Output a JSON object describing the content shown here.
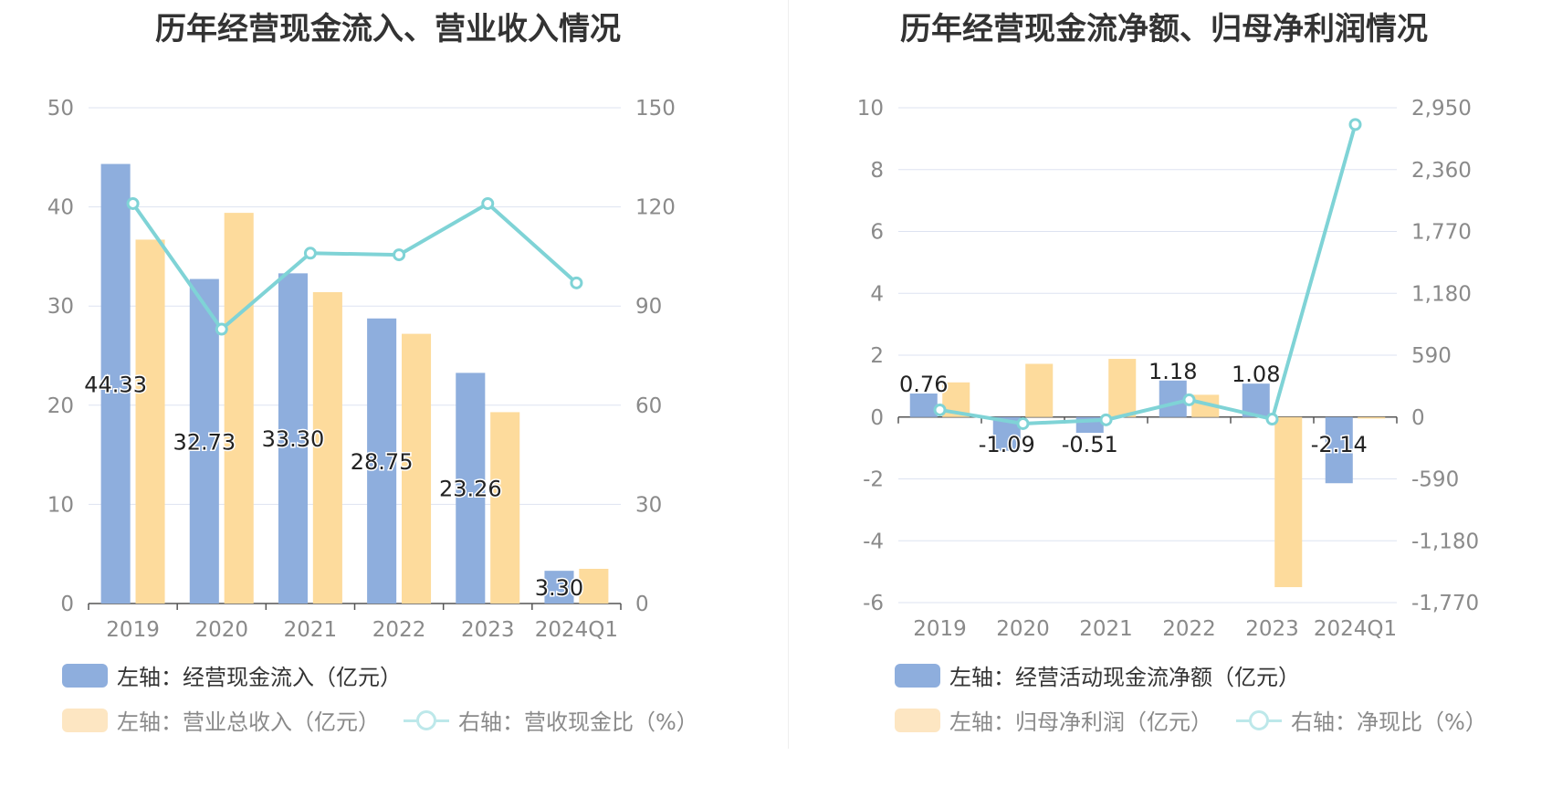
{
  "colors": {
    "bar_left": "#8eaedd",
    "bar_right": "#fddb9c",
    "line": "#7fd3d6",
    "grid": "#dde3f1",
    "axis": "#555555",
    "tick_text": "#8a8a8a"
  },
  "chart_data": [
    {
      "type": "bar",
      "title": "历年经营现金流入、营业收入情况",
      "categories": [
        "2019",
        "2020",
        "2021",
        "2022",
        "2023",
        "2024Q1"
      ],
      "left_axis": {
        "min": 0,
        "max": 50,
        "ticks": [
          "0",
          "10",
          "20",
          "30",
          "40",
          "50"
        ]
      },
      "right_axis": {
        "min": 0,
        "max": 150,
        "ticks": [
          "0",
          "30",
          "60",
          "90",
          "120",
          "150"
        ]
      },
      "series": [
        {
          "name": "左轴：经营现金流入（亿元）",
          "kind": "bar",
          "axis": "left",
          "values": [
            44.33,
            32.73,
            33.3,
            28.75,
            23.26,
            3.3
          ],
          "labels": [
            "44.33",
            "32.73",
            "33.30",
            "28.75",
            "23.26",
            "3.30"
          ]
        },
        {
          "name": "左轴：营业总收入（亿元）",
          "kind": "bar",
          "axis": "left",
          "values": [
            36.7,
            39.4,
            31.4,
            27.2,
            19.3,
            3.5
          ]
        },
        {
          "name": "右轴：营收现金比（%）",
          "kind": "line",
          "axis": "right",
          "values": [
            121,
            83,
            106,
            105.5,
            121,
            97
          ]
        }
      ]
    },
    {
      "type": "bar",
      "title": "历年经营现金流净额、归母净利润情况",
      "categories": [
        "2019",
        "2020",
        "2021",
        "2022",
        "2023",
        "2024Q1"
      ],
      "left_axis": {
        "min": -6,
        "max": 10,
        "ticks": [
          "-6",
          "-4",
          "-2",
          "0",
          "2",
          "4",
          "6",
          "8",
          "10"
        ]
      },
      "right_axis": {
        "min": -1770,
        "max": 2950,
        "ticks": [
          "-1,770",
          "-1,180",
          "-590",
          "0",
          "590",
          "1,180",
          "1,770",
          "2,360",
          "2,950"
        ]
      },
      "series": [
        {
          "name": "左轴：经营活动现金流净额（亿元）",
          "kind": "bar",
          "axis": "left",
          "values": [
            0.76,
            -1.09,
            -0.51,
            1.18,
            1.08,
            -2.14
          ],
          "labels": [
            "0.76",
            "-1.09",
            "-0.51",
            "1.18",
            "1.08",
            "-2.14"
          ]
        },
        {
          "name": "左轴：归母净利润（亿元）",
          "kind": "bar",
          "axis": "left",
          "values": [
            1.12,
            1.72,
            1.88,
            0.72,
            -5.5,
            -0.05
          ]
        },
        {
          "name": "右轴：净现比（%）",
          "kind": "line",
          "axis": "right",
          "values": [
            68,
            -63,
            -27,
            164,
            -20,
            2790
          ]
        }
      ]
    }
  ]
}
